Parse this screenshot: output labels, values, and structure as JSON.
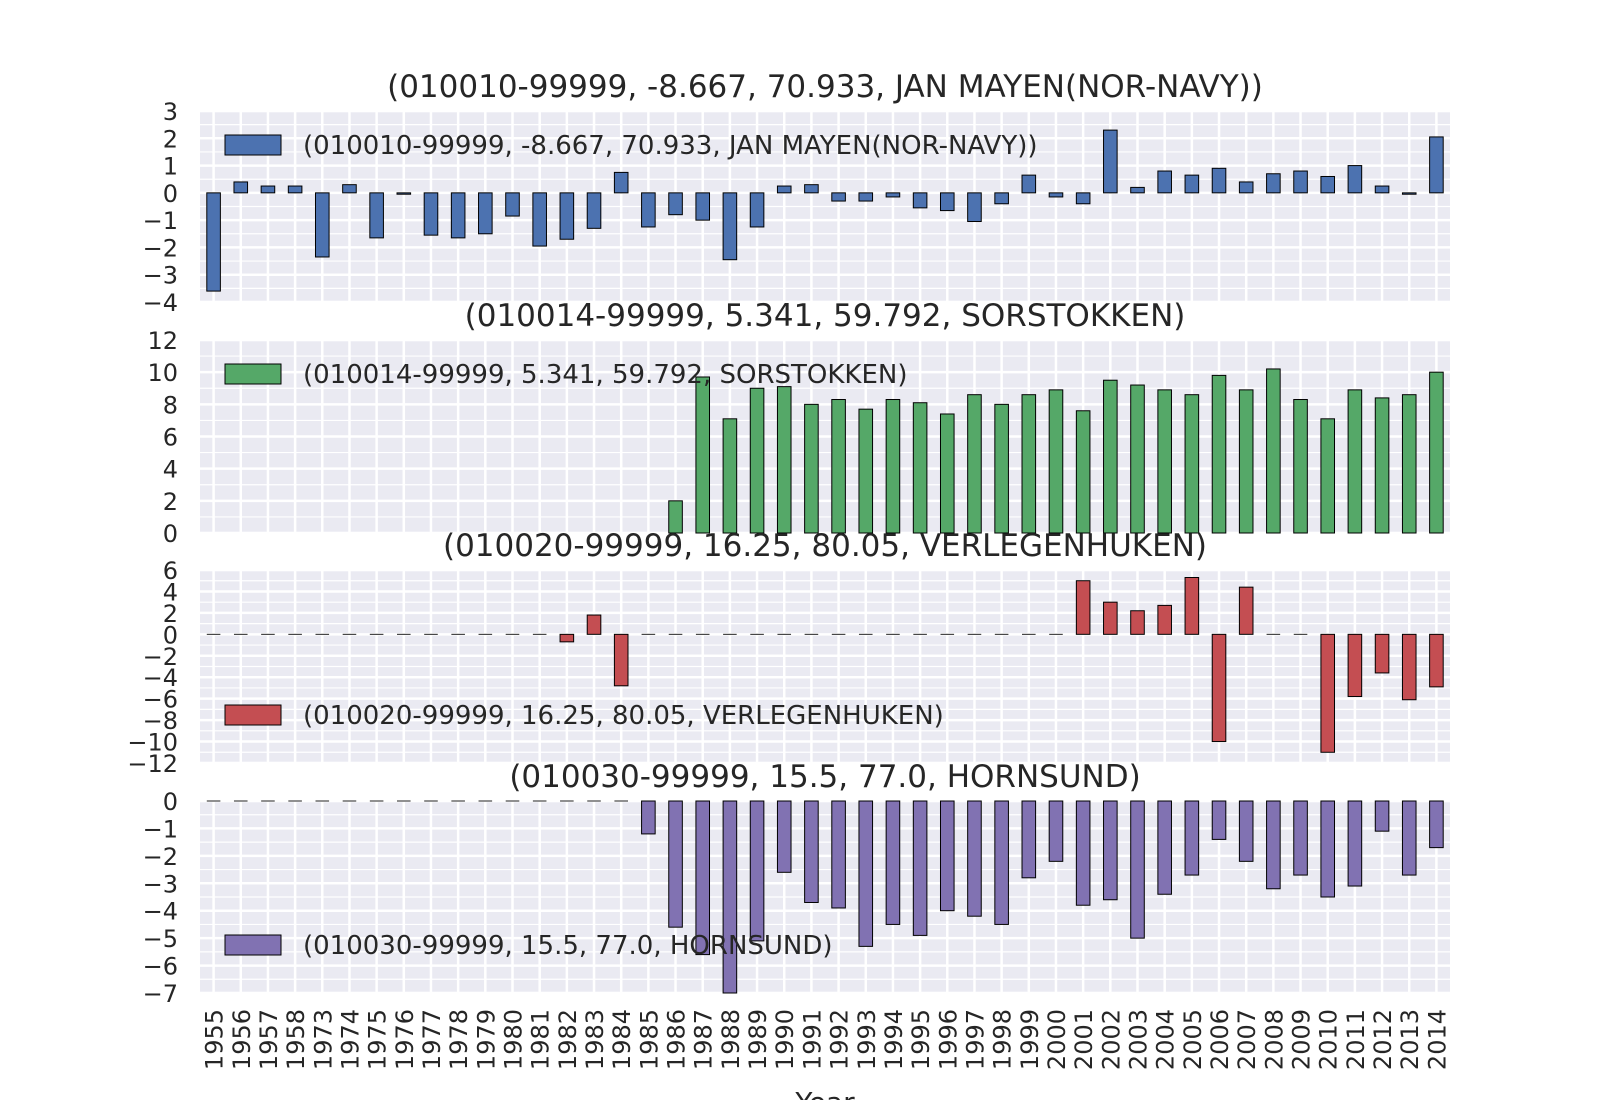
{
  "figure": {
    "xlabel": "Year",
    "background": "#ffffff",
    "axes_background": "#eaeaf2",
    "grid_color": "#ffffff",
    "bar_edge_color": "#000000"
  },
  "chart_data": [
    {
      "type": "bar",
      "title": "(010010-99999, -8.667, 70.933, JAN MAYEN(NOR-NAVY))",
      "legend": {
        "label": "(010010-99999, -8.667, 70.933, JAN MAYEN(NOR-NAVY))",
        "placement": "upper-left"
      },
      "color": "#4c72b0",
      "ylim": [
        -4,
        3
      ],
      "yticks": [
        -4,
        -3,
        -2,
        -1,
        0,
        1,
        2,
        3
      ],
      "grid": true,
      "categories": [
        "1955",
        "1956",
        "1957",
        "1958",
        "1973",
        "1974",
        "1975",
        "1976",
        "1977",
        "1978",
        "1979",
        "1980",
        "1981",
        "1982",
        "1983",
        "1984",
        "1985",
        "1986",
        "1987",
        "1988",
        "1989",
        "1990",
        "1991",
        "1992",
        "1993",
        "1994",
        "1995",
        "1996",
        "1997",
        "1998",
        "1999",
        "2000",
        "2001",
        "2002",
        "2003",
        "2004",
        "2005",
        "2006",
        "2007",
        "2008",
        "2009",
        "2010",
        "2011",
        "2012",
        "2013",
        "2014"
      ],
      "values": [
        -3.6,
        0.4,
        0.25,
        0.25,
        -2.35,
        0.3,
        -1.65,
        -0.05,
        -1.55,
        -1.65,
        -1.5,
        -0.85,
        -1.95,
        -1.7,
        -1.3,
        0.75,
        -1.25,
        -0.8,
        -1.0,
        -2.45,
        -1.25,
        0.25,
        0.3,
        -0.3,
        -0.3,
        -0.15,
        -0.55,
        -0.65,
        -1.05,
        -0.4,
        0.65,
        -0.15,
        -0.4,
        2.3,
        0.2,
        0.8,
        0.65,
        0.9,
        0.4,
        0.7,
        0.8,
        0.6,
        1.0,
        0.25,
        -0.05,
        2.05
      ]
    },
    {
      "type": "bar",
      "title": "(010014-99999, 5.341, 59.792, SORSTOKKEN)",
      "legend": {
        "label": "(010014-99999, 5.341, 59.792, SORSTOKKEN)",
        "placement": "upper-left"
      },
      "color": "#55a868",
      "ylim": [
        0,
        12
      ],
      "yticks": [
        0,
        2,
        4,
        6,
        8,
        10,
        12
      ],
      "grid": true,
      "categories": [
        "1955",
        "1956",
        "1957",
        "1958",
        "1973",
        "1974",
        "1975",
        "1976",
        "1977",
        "1978",
        "1979",
        "1980",
        "1981",
        "1982",
        "1983",
        "1984",
        "1985",
        "1986",
        "1987",
        "1988",
        "1989",
        "1990",
        "1991",
        "1992",
        "1993",
        "1994",
        "1995",
        "1996",
        "1997",
        "1998",
        "1999",
        "2000",
        "2001",
        "2002",
        "2003",
        "2004",
        "2005",
        "2006",
        "2007",
        "2008",
        "2009",
        "2010",
        "2011",
        "2012",
        "2013",
        "2014"
      ],
      "values": [
        null,
        null,
        null,
        null,
        null,
        null,
        null,
        null,
        null,
        null,
        null,
        null,
        null,
        null,
        null,
        null,
        null,
        2.0,
        9.7,
        7.1,
        9.0,
        9.1,
        8.0,
        8.3,
        7.7,
        8.3,
        8.1,
        7.4,
        8.6,
        8.0,
        8.6,
        8.9,
        7.6,
        9.5,
        9.2,
        8.9,
        8.6,
        9.8,
        8.9,
        10.2,
        8.3,
        7.1,
        8.9,
        8.4,
        8.6,
        10.0
      ]
    },
    {
      "type": "bar",
      "title": "(010020-99999, 16.25, 80.05, VERLEGENHUKEN)",
      "legend": {
        "label": "(010020-99999, 16.25, 80.05, VERLEGENHUKEN)",
        "placement": "lower-left"
      },
      "color": "#c44e52",
      "ylim": [
        -12,
        6
      ],
      "yticks": [
        -12,
        -10,
        -8,
        -6,
        -4,
        -2,
        0,
        2,
        4,
        6
      ],
      "grid": true,
      "categories": [
        "1955",
        "1956",
        "1957",
        "1958",
        "1973",
        "1974",
        "1975",
        "1976",
        "1977",
        "1978",
        "1979",
        "1980",
        "1981",
        "1982",
        "1983",
        "1984",
        "1985",
        "1986",
        "1987",
        "1988",
        "1989",
        "1990",
        "1991",
        "1992",
        "1993",
        "1994",
        "1995",
        "1996",
        "1997",
        "1998",
        "1999",
        "2000",
        "2001",
        "2002",
        "2003",
        "2004",
        "2005",
        "2006",
        "2007",
        "2008",
        "2009",
        "2010",
        "2011",
        "2012",
        "2013",
        "2014"
      ],
      "values": [
        null,
        null,
        null,
        null,
        null,
        null,
        null,
        null,
        null,
        null,
        null,
        null,
        null,
        -0.7,
        1.8,
        -4.8,
        null,
        null,
        null,
        null,
        null,
        null,
        null,
        null,
        null,
        null,
        null,
        null,
        null,
        null,
        null,
        null,
        5.0,
        3.0,
        2.2,
        2.7,
        5.3,
        -10.0,
        4.4,
        null,
        null,
        -11.0,
        -5.8,
        -3.6,
        -6.1,
        -4.9
      ],
      "values_note": ""
    },
    {
      "type": "bar",
      "title": "(010030-99999, 15.5, 77.0, HORNSUND)",
      "legend": {
        "label": "(010030-99999, 15.5, 77.0, HORNSUND)",
        "placement": "lower-left"
      },
      "color": "#8172b2",
      "ylim": [
        -7,
        0
      ],
      "yticks": [
        -7,
        -6,
        -5,
        -4,
        -3,
        -2,
        -1,
        0
      ],
      "grid": true,
      "categories": [
        "1955",
        "1956",
        "1957",
        "1958",
        "1973",
        "1974",
        "1975",
        "1976",
        "1977",
        "1978",
        "1979",
        "1980",
        "1981",
        "1982",
        "1983",
        "1984",
        "1985",
        "1986",
        "1987",
        "1988",
        "1989",
        "1990",
        "1991",
        "1992",
        "1993",
        "1994",
        "1995",
        "1996",
        "1997",
        "1998",
        "1999",
        "2000",
        "2001",
        "2002",
        "2003",
        "2004",
        "2005",
        "2006",
        "2007",
        "2008",
        "2009",
        "2010",
        "2011",
        "2012",
        "2013",
        "2014"
      ],
      "values": [
        null,
        null,
        null,
        null,
        null,
        null,
        null,
        null,
        null,
        null,
        null,
        null,
        null,
        null,
        null,
        null,
        -1.2,
        -4.6,
        -5.6,
        -7.0,
        -5.1,
        -2.6,
        -3.7,
        -3.9,
        -5.3,
        -4.5,
        -4.9,
        -4.0,
        -4.2,
        -4.5,
        -2.8,
        -2.2,
        -3.8,
        -3.6,
        -5.0,
        -3.4,
        -2.7,
        -1.4,
        -2.2,
        -3.2,
        -2.7,
        -3.5,
        -3.1,
        -1.1,
        -2.7,
        -1.7
      ]
    }
  ]
}
